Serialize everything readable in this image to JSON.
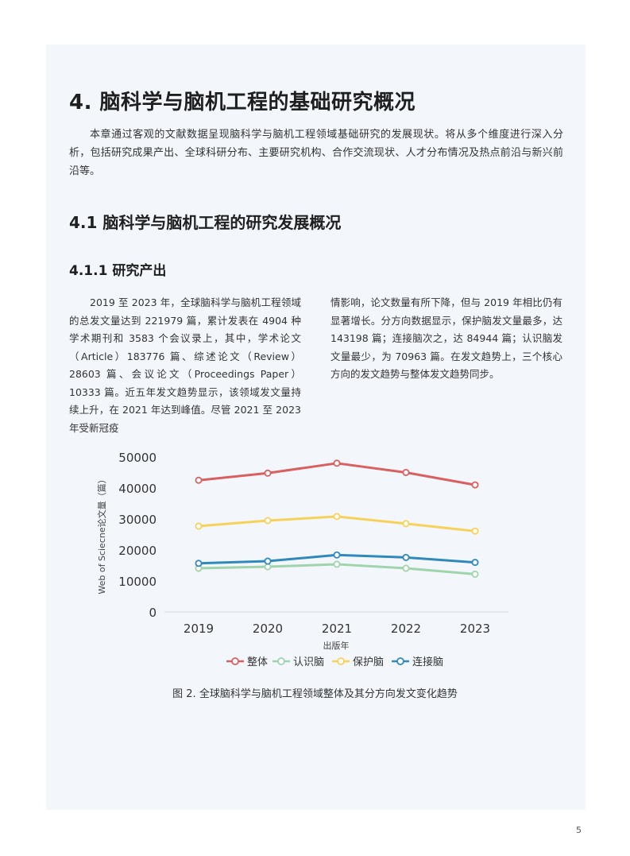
{
  "heading1": "4. 脑科学与脑机工程的基础研究概况",
  "intro": "本章通过客观的文献数据呈现脑科学与脑机工程领域基础研究的发展现状。将从多个维度进行深入分析，包括研究成果产出、全球科研分布、主要研究机构、合作交流现状、人才分布情况及热点前沿与新兴前沿等。",
  "heading2": "4.1 脑科学与脑机工程的研究发展概况",
  "heading3": "4.1.1 研究产出",
  "para_left": "2019 至 2023 年，全球脑科学与脑机工程领域的总发文量达到 221979 篇，累计发表在 4904 种学术期刊和 3583 个会议录上，其中，学术论文（Article）183776 篇、综述论文（Review）28603 篇、会议论文（Proceedings Paper）10333 篇。近五年发文趋势显示，该领域发文量持续上升，在 2021 年达到峰值。尽管 2021 至 2023 年受新冠疫",
  "para_right": "情影响，论文数量有所下降，但与 2019 年相比仍有显著增长。分方向数据显示，保护脑发文量最多，达 143198 篇；连接脑次之，达 84944 篇；认识脑发文量最少，为 70963 篇。在发文趋势上，三个核心方向的发文趋势与整体发文趋势同步。",
  "chart_data": {
    "type": "line",
    "title": "",
    "xlabel": "出版年",
    "ylabel": "Web of Science论文量（篇）",
    "ylabel_display": "Web of Sciecne论文量（篇）",
    "x": [
      "2019",
      "2020",
      "2021",
      "2022",
      "2023"
    ],
    "ylim": [
      0,
      50000
    ],
    "yticks": [
      0,
      10000,
      20000,
      30000,
      40000,
      50000
    ],
    "grid": false,
    "legend": "bottom",
    "series": [
      {
        "name": "整体",
        "color": "#d9605f",
        "values": [
          42500,
          44800,
          48000,
          45000,
          41000
        ]
      },
      {
        "name": "认识脑",
        "color": "#9fd4ac",
        "values": [
          14100,
          14600,
          15400,
          14100,
          12200
        ]
      },
      {
        "name": "保护脑",
        "color": "#f7d25a",
        "values": [
          27700,
          29500,
          30800,
          28500,
          26100
        ]
      },
      {
        "name": "连接脑",
        "color": "#2f89bd",
        "values": [
          15700,
          16400,
          18400,
          17600,
          16000
        ]
      }
    ]
  },
  "caption": "图 2. 全球脑科学与脑机工程领域整体及其分方向发文变化趋势",
  "page_number": "5"
}
